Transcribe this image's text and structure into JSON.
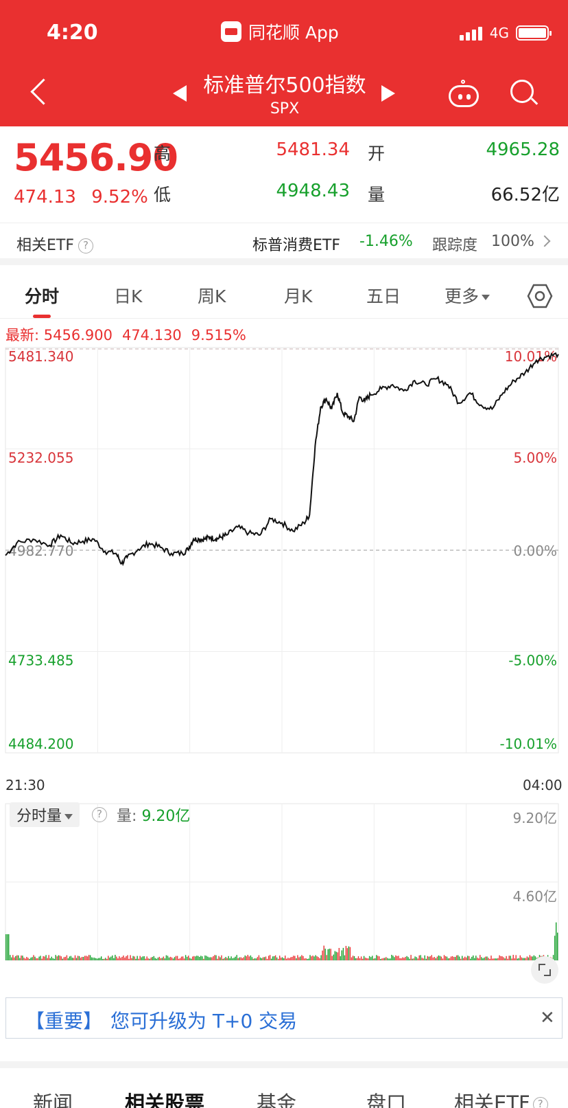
{
  "status": {
    "time": "4:20",
    "app": "同花顺 App",
    "network": "4G"
  },
  "header": {
    "title": "标准普尔500指数",
    "code": "SPX"
  },
  "quote": {
    "price": "5456.90",
    "change": "474.13",
    "change_pct": "9.52%",
    "high_label": "高",
    "high": "5481.34",
    "low_label": "低",
    "low": "4948.43",
    "open_label": "开",
    "open": "4965.28",
    "vol_label": "量",
    "volume": "66.52亿"
  },
  "etf": {
    "label": "相关ETF",
    "name": "标普消费ETF",
    "change": "-1.46%",
    "track_label": "跟踪度",
    "track": "100%"
  },
  "tabs": [
    "分时",
    "日K",
    "周K",
    "月K",
    "五日",
    "更多"
  ],
  "latest": {
    "label": "最新: 5456.900",
    "change": "474.130",
    "pct": "9.515%"
  },
  "chart_data": {
    "type": "line",
    "title": "",
    "y_ticks": [
      "5481.340",
      "5232.055",
      "4982.770",
      "4733.485",
      "4484.200"
    ],
    "pct_ticks": [
      "10.01%",
      "5.00%",
      "0.00%",
      "-5.00%",
      "-10.01%"
    ],
    "ylim": [
      4484.2,
      5481.34
    ],
    "base": 4982.77,
    "x_start": "21:30",
    "x_end": "04:00",
    "series": [
      {
        "x": [
          0,
          2,
          5,
          8,
          10,
          12,
          14,
          16,
          18,
          20,
          21,
          22,
          24,
          26,
          28,
          30,
          32,
          33,
          34,
          35,
          36,
          37,
          38,
          39,
          40,
          42,
          44,
          46,
          48,
          50,
          52,
          54,
          55,
          56,
          57,
          58,
          59,
          60,
          61,
          62,
          63,
          64,
          65,
          66,
          68,
          70,
          72,
          74,
          76,
          78,
          80,
          82,
          84,
          86,
          88,
          90,
          92,
          94,
          96,
          98,
          100
        ],
        "y": [
          4970,
          5000,
          5010,
          4995,
          5020,
          5000,
          5005,
          5010,
          4980,
          4975,
          4950,
          4965,
          4985,
          5000,
          4990,
          4975,
          4975,
          4985,
          5010,
          5010,
          5010,
          5015,
          5010,
          5015,
          5020,
          5040,
          5025,
          5020,
          5060,
          5050,
          5030,
          5050,
          5070,
          5240,
          5335,
          5356,
          5330,
          5370,
          5320,
          5312,
          5300,
          5360,
          5350,
          5365,
          5380,
          5390,
          5375,
          5400,
          5390,
          5405,
          5390,
          5345,
          5370,
          5340,
          5330,
          5370,
          5400,
          5420,
          5450,
          5460,
          5465
        ]
      }
    ],
    "volume_ticks": [
      "9.20亿",
      "4.60亿"
    ],
    "volume_max": 9.2
  },
  "volume": {
    "selector": "分时量",
    "label": "量:",
    "value": "9.20亿"
  },
  "notice": {
    "tag": "【重要】",
    "text": "您可升级为 T+0 交易"
  },
  "bottom_tabs": [
    "新闻",
    "相关股票",
    "基金",
    "盘口",
    "相关ETF"
  ],
  "colors": {
    "brand": "#e93030",
    "up": "#e93030",
    "down": "#17a02c"
  }
}
